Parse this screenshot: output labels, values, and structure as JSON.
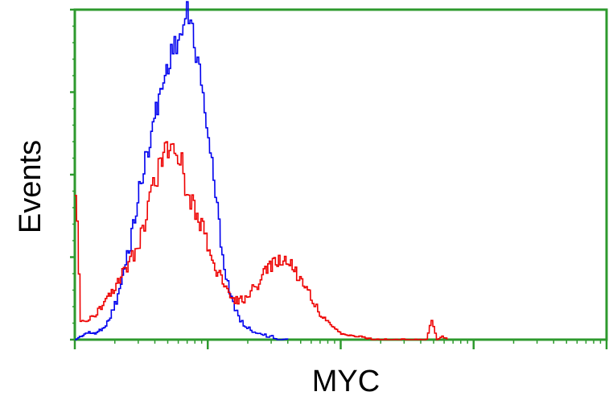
{
  "chart_data": {
    "type": "line",
    "title": "",
    "xlabel": "MYC",
    "ylabel": "Events",
    "x_scale": "log",
    "x_decades": 4,
    "xlim": [
      0,
      1
    ],
    "ylim": [
      0,
      1
    ],
    "grid": false,
    "legend": "none",
    "frame_color": "#2e9a2e",
    "series": [
      {
        "color": "#0000ee",
        "x": [
          0.0,
          0.02,
          0.04,
          0.06,
          0.08,
          0.1,
          0.12,
          0.14,
          0.16,
          0.18,
          0.19,
          0.2,
          0.21,
          0.22,
          0.23,
          0.24,
          0.25,
          0.26,
          0.27,
          0.28,
          0.29,
          0.3,
          0.31,
          0.32,
          0.33,
          0.34,
          0.35,
          0.36,
          0.37,
          0.38,
          0.4
        ],
        "y": [
          0.0,
          0.02,
          0.02,
          0.05,
          0.13,
          0.27,
          0.45,
          0.61,
          0.75,
          0.87,
          0.9,
          0.93,
          0.99,
          0.94,
          0.84,
          0.74,
          0.62,
          0.48,
          0.35,
          0.22,
          0.15,
          0.09,
          0.06,
          0.04,
          0.03,
          0.02,
          0.02,
          0.01,
          0.01,
          0.0,
          0.0
        ]
      },
      {
        "color": "#ee0000",
        "x": [
          0.0,
          0.01,
          0.02,
          0.04,
          0.06,
          0.08,
          0.1,
          0.11,
          0.12,
          0.13,
          0.14,
          0.15,
          0.16,
          0.18,
          0.19,
          0.2,
          0.21,
          0.22,
          0.24,
          0.26,
          0.28,
          0.3,
          0.32,
          0.33,
          0.34,
          0.36,
          0.38,
          0.4,
          0.42,
          0.44,
          0.45,
          0.46,
          0.48,
          0.5,
          0.52,
          0.54,
          0.56,
          0.58,
          0.6,
          0.62,
          0.64,
          0.66,
          0.67,
          0.68,
          0.69,
          0.7
        ],
        "y": [
          0.47,
          0.06,
          0.05,
          0.08,
          0.12,
          0.17,
          0.23,
          0.26,
          0.3,
          0.35,
          0.44,
          0.47,
          0.55,
          0.59,
          0.56,
          0.55,
          0.43,
          0.42,
          0.33,
          0.23,
          0.16,
          0.12,
          0.12,
          0.15,
          0.16,
          0.21,
          0.24,
          0.24,
          0.19,
          0.14,
          0.11,
          0.08,
          0.04,
          0.02,
          0.01,
          0.01,
          0.0,
          0.0,
          0.0,
          0.0,
          0.0,
          0.0,
          0.06,
          0.0,
          0.01,
          0.0
        ]
      }
    ]
  }
}
